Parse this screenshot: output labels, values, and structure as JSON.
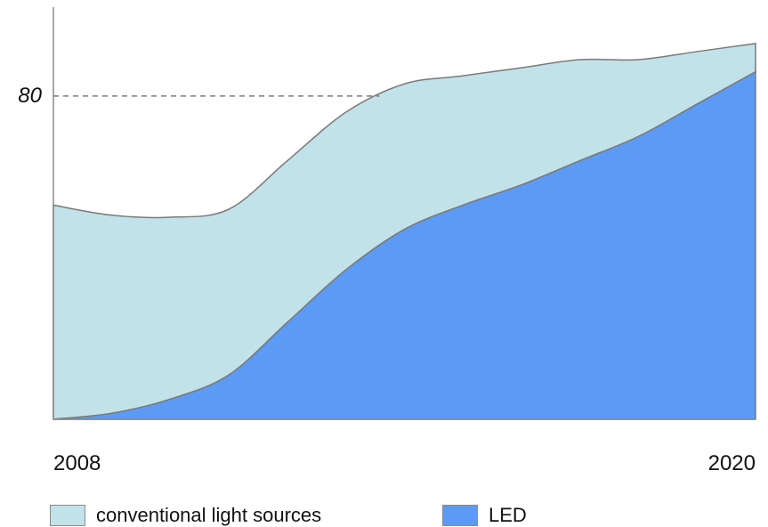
{
  "chart_data": {
    "type": "area",
    "stacked": true,
    "x_labels": [
      "2008",
      "2020"
    ],
    "x": [
      2008,
      2009,
      2010,
      2011,
      2012,
      2013,
      2014,
      2015,
      2016,
      2017,
      2018,
      2019,
      2020
    ],
    "y_reference": {
      "value": 80,
      "label": "80",
      "style": "dashed"
    },
    "ylim": [
      0,
      102
    ],
    "grid": false,
    "legend_position": "bottom",
    "series": [
      {
        "name": "LED",
        "color": "#5b9bf5",
        "values": [
          0,
          1.5,
          5,
          11,
          24,
          37,
          47,
          53,
          58,
          64,
          70,
          78,
          86
        ]
      },
      {
        "name": "conventional light sources",
        "color": "#c2e2ea",
        "values": [
          53,
          49,
          45,
          41,
          40,
          39,
          36,
          32,
          29,
          25,
          19,
          13,
          7
        ]
      }
    ]
  }
}
